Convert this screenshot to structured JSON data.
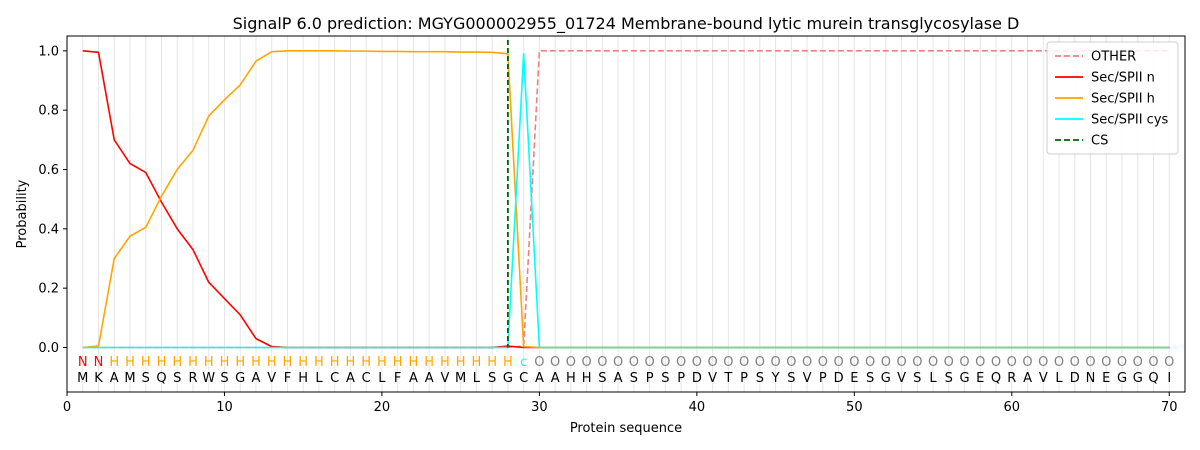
{
  "chart_data": {
    "type": "line",
    "title": "SignalP 6.0 prediction: MGYG000002955_01724 Membrane-bound lytic murein transglycosylase D",
    "xlabel": "Protein sequence",
    "ylabel": "Probability",
    "xlim": [
      0,
      71
    ],
    "ylim": [
      -0.15,
      1.05
    ],
    "xticks": [
      0,
      10,
      20,
      30,
      40,
      50,
      60,
      70
    ],
    "yticks": [
      0.0,
      0.2,
      0.4,
      0.6,
      0.8,
      1.0
    ],
    "ytick_labels": [
      "0.0",
      "0.2",
      "0.4",
      "0.6",
      "0.8",
      "1.0"
    ],
    "grid": "vertical lines at each residue",
    "legend_position": "top-right",
    "sequence": [
      "M",
      "K",
      "A",
      "M",
      "S",
      "Q",
      "S",
      "R",
      "W",
      "S",
      "G",
      "A",
      "V",
      "F",
      "H",
      "L",
      "C",
      "A",
      "C",
      "L",
      "F",
      "A",
      "A",
      "V",
      "M",
      "L",
      "S",
      "G",
      "C",
      "A",
      "A",
      "H",
      "H",
      "S",
      "A",
      "S",
      "P",
      "S",
      "P",
      "D",
      "V",
      "T",
      "P",
      "S",
      "Y",
      "S",
      "V",
      "P",
      "D",
      "E",
      "S",
      "G",
      "V",
      "S",
      "L",
      "S",
      "G",
      "E",
      "Q",
      "R",
      "A",
      "V",
      "L",
      "D",
      "N",
      "E",
      "G",
      "G",
      "Q",
      "I"
    ],
    "annotation": [
      "N",
      "N",
      "H",
      "H",
      "H",
      "H",
      "H",
      "H",
      "H",
      "H",
      "H",
      "H",
      "H",
      "H",
      "H",
      "H",
      "H",
      "H",
      "H",
      "H",
      "H",
      "H",
      "H",
      "H",
      "H",
      "H",
      "H",
      "H",
      "c",
      "O",
      "O",
      "O",
      "O",
      "O",
      "O",
      "O",
      "O",
      "O",
      "O",
      "O",
      "O",
      "O",
      "O",
      "O",
      "O",
      "O",
      "O",
      "O",
      "O",
      "O",
      "O",
      "O",
      "O",
      "O",
      "O",
      "O",
      "O",
      "O",
      "O",
      "O",
      "O",
      "O",
      "O",
      "O",
      "O",
      "O",
      "O",
      "O",
      "O",
      "O"
    ],
    "annotation_colors": {
      "N": "#ff0000",
      "H": "#ffa500",
      "c": "#00ffff",
      "O": "#808080"
    },
    "cleavage_site": 28,
    "series": [
      {
        "name": "OTHER",
        "color": "#f08080",
        "style": "dashed",
        "values": [
          0,
          0,
          0,
          0,
          0,
          0,
          0,
          0,
          0,
          0,
          0,
          0,
          0,
          0,
          0,
          0,
          0,
          0,
          0,
          0,
          0,
          0,
          0,
          0,
          0,
          0,
          0,
          0,
          0.005,
          1.0,
          1.0,
          1.0,
          1.0,
          1.0,
          1.0,
          1.0,
          1.0,
          1.0,
          1.0,
          1.0,
          1.0,
          1.0,
          1.0,
          1.0,
          1.0,
          1.0,
          1.0,
          1.0,
          1.0,
          1.0,
          1.0,
          1.0,
          1.0,
          1.0,
          1.0,
          1.0,
          1.0,
          1.0,
          1.0,
          1.0,
          1.0,
          1.0,
          1.0,
          1.0,
          1.0,
          1.0,
          1.0,
          1.0,
          1.0,
          1.0
        ]
      },
      {
        "name": "Sec/SPII n",
        "color": "#ff0000",
        "style": "solid",
        "values": [
          1.0,
          0.995,
          0.7,
          0.62,
          0.59,
          0.49,
          0.4,
          0.33,
          0.22,
          0.165,
          0.11,
          0.03,
          0.003,
          0,
          0,
          0,
          0,
          0,
          0,
          0,
          0,
          0,
          0,
          0,
          0,
          0,
          0,
          0.005,
          0,
          0,
          0,
          0,
          0,
          0,
          0,
          0,
          0,
          0,
          0,
          0,
          0,
          0,
          0,
          0,
          0,
          0,
          0,
          0,
          0,
          0,
          0,
          0,
          0,
          0,
          0,
          0,
          0,
          0,
          0,
          0,
          0,
          0,
          0,
          0,
          0,
          0,
          0,
          0,
          0,
          0
        ]
      },
      {
        "name": "Sec/SPII h",
        "color": "#ffa500",
        "style": "solid",
        "values": [
          0,
          0.005,
          0.3,
          0.375,
          0.405,
          0.51,
          0.6,
          0.665,
          0.78,
          0.835,
          0.885,
          0.965,
          0.997,
          1.0,
          1.0,
          1.0,
          1.0,
          0.999,
          0.999,
          0.998,
          0.998,
          0.997,
          0.997,
          0.997,
          0.996,
          0.996,
          0.995,
          0.99,
          0.003,
          0,
          0,
          0,
          0,
          0,
          0,
          0,
          0,
          0,
          0,
          0,
          0,
          0,
          0,
          0,
          0,
          0,
          0,
          0,
          0,
          0,
          0,
          0,
          0,
          0,
          0,
          0,
          0,
          0,
          0,
          0,
          0,
          0,
          0,
          0,
          0,
          0,
          0,
          0,
          0,
          0
        ]
      },
      {
        "name": "Sec/SPII cys",
        "color": "#00ffff",
        "style": "solid",
        "values": [
          0,
          0,
          0,
          0,
          0,
          0,
          0,
          0,
          0,
          0,
          0,
          0,
          0,
          0,
          0,
          0,
          0,
          0,
          0,
          0,
          0,
          0,
          0,
          0,
          0,
          0,
          0,
          0,
          0.99,
          0,
          0,
          0,
          0,
          0,
          0,
          0,
          0,
          0,
          0,
          0,
          0,
          0,
          0,
          0,
          0,
          0,
          0,
          0,
          0,
          0,
          0,
          0,
          0,
          0,
          0,
          0,
          0,
          0,
          0,
          0,
          0,
          0,
          0,
          0,
          0,
          0,
          0,
          0,
          0,
          0
        ]
      },
      {
        "name": "CS",
        "color": "#006400",
        "style": "dashed",
        "x": 28
      }
    ]
  }
}
